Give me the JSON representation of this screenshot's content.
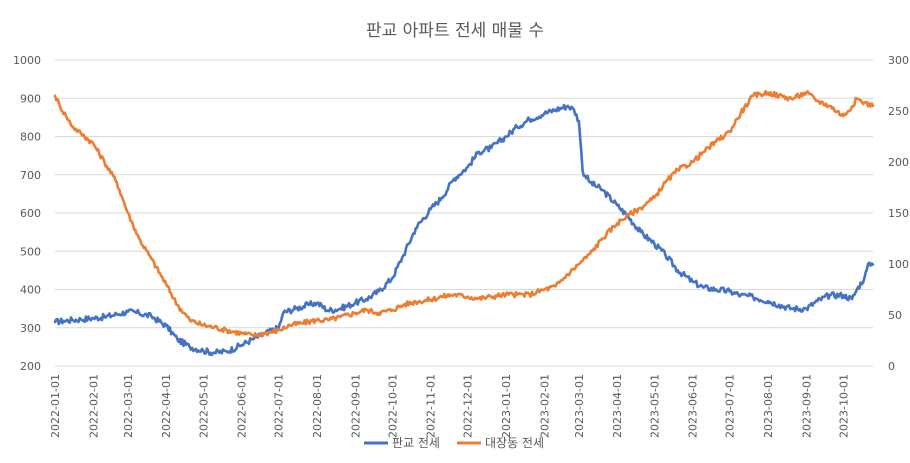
{
  "chart_data": {
    "type": "line",
    "title": "판교 아파트 전세 매물 수",
    "xlabel": "",
    "ylabel": "",
    "x_ticks": [
      "2022-01-01",
      "2022-02-01",
      "2022-03-01",
      "2022-04-01",
      "2022-05-01",
      "2022-06-01",
      "2022-07-01",
      "2022-08-01",
      "2022-09-01",
      "2022-10-01",
      "2022-11-01",
      "2022-12-01",
      "2023-01-01",
      "2023-02-01",
      "2023-03-01",
      "2023-04-01",
      "2023-05-01",
      "2023-06-01",
      "2023-07-01",
      "2023-08-01",
      "2023-09-01",
      "2023-10-01"
    ],
    "x_range": [
      "2022-01-01",
      "2023-10-25"
    ],
    "y_left": {
      "range": [
        200,
        1000
      ],
      "ticks": [
        "200",
        "300",
        "400",
        "500",
        "600",
        "700",
        "800",
        "900",
        "1000"
      ]
    },
    "y_right": {
      "range": [
        0,
        300
      ],
      "ticks": [
        "0",
        "50",
        "100",
        "150",
        "200",
        "250",
        "300"
      ]
    },
    "grid": true,
    "legend_position": "bottom",
    "colors": {
      "series1": "#4472c4",
      "series2": "#ed7d31"
    },
    "series": [
      {
        "name": "판교 전세",
        "axis": "left",
        "points": [
          [
            "2022-01-01",
            315
          ],
          [
            "2022-01-08",
            318
          ],
          [
            "2022-01-15",
            320
          ],
          [
            "2022-01-22",
            322
          ],
          [
            "2022-02-01",
            325
          ],
          [
            "2022-02-10",
            328
          ],
          [
            "2022-02-20",
            335
          ],
          [
            "2022-03-01",
            342
          ],
          [
            "2022-03-10",
            338
          ],
          [
            "2022-03-20",
            330
          ],
          [
            "2022-04-01",
            305
          ],
          [
            "2022-04-10",
            270
          ],
          [
            "2022-04-20",
            250
          ],
          [
            "2022-05-01",
            240
          ],
          [
            "2022-05-10",
            235
          ],
          [
            "2022-05-20",
            238
          ],
          [
            "2022-06-01",
            255
          ],
          [
            "2022-06-10",
            270
          ],
          [
            "2022-06-20",
            285
          ],
          [
            "2022-07-01",
            300
          ],
          [
            "2022-07-05",
            340
          ],
          [
            "2022-07-15",
            350
          ],
          [
            "2022-07-25",
            360
          ],
          [
            "2022-08-01",
            365
          ],
          [
            "2022-08-10",
            345
          ],
          [
            "2022-08-20",
            350
          ],
          [
            "2022-09-01",
            365
          ],
          [
            "2022-09-10",
            375
          ],
          [
            "2022-09-20",
            395
          ],
          [
            "2022-10-01",
            430
          ],
          [
            "2022-10-10",
            490
          ],
          [
            "2022-10-20",
            560
          ],
          [
            "2022-11-01",
            610
          ],
          [
            "2022-11-10",
            640
          ],
          [
            "2022-11-20",
            690
          ],
          [
            "2022-12-01",
            720
          ],
          [
            "2022-12-10",
            760
          ],
          [
            "2022-12-20",
            770
          ],
          [
            "2023-01-01",
            800
          ],
          [
            "2023-01-10",
            825
          ],
          [
            "2023-01-20",
            845
          ],
          [
            "2023-02-01",
            860
          ],
          [
            "2023-02-10",
            870
          ],
          [
            "2023-02-20",
            880
          ],
          [
            "2023-02-25",
            870
          ],
          [
            "2023-03-01",
            840
          ],
          [
            "2023-03-04",
            710
          ],
          [
            "2023-03-10",
            680
          ],
          [
            "2023-03-20",
            660
          ],
          [
            "2023-04-01",
            620
          ],
          [
            "2023-04-10",
            590
          ],
          [
            "2023-04-20",
            550
          ],
          [
            "2023-05-01",
            520
          ],
          [
            "2023-05-10",
            490
          ],
          [
            "2023-05-20",
            450
          ],
          [
            "2023-06-01",
            420
          ],
          [
            "2023-06-10",
            405
          ],
          [
            "2023-06-20",
            400
          ],
          [
            "2023-07-01",
            395
          ],
          [
            "2023-07-10",
            385
          ],
          [
            "2023-07-20",
            380
          ],
          [
            "2023-08-01",
            370
          ],
          [
            "2023-08-10",
            360
          ],
          [
            "2023-08-20",
            350
          ],
          [
            "2023-09-01",
            350
          ],
          [
            "2023-09-10",
            370
          ],
          [
            "2023-09-20",
            385
          ],
          [
            "2023-10-01",
            385
          ],
          [
            "2023-10-08",
            375
          ],
          [
            "2023-10-12",
            400
          ],
          [
            "2023-10-18",
            430
          ],
          [
            "2023-10-22",
            470
          ],
          [
            "2023-10-25",
            465
          ]
        ]
      },
      {
        "name": "대장동 전세",
        "axis": "right",
        "points": [
          [
            "2022-01-01",
            265
          ],
          [
            "2022-01-05",
            255
          ],
          [
            "2022-01-10",
            245
          ],
          [
            "2022-01-15",
            235
          ],
          [
            "2022-01-22",
            228
          ],
          [
            "2022-02-01",
            218
          ],
          [
            "2022-02-10",
            200
          ],
          [
            "2022-02-20",
            180
          ],
          [
            "2022-03-01",
            150
          ],
          [
            "2022-03-10",
            125
          ],
          [
            "2022-03-20",
            105
          ],
          [
            "2022-04-01",
            80
          ],
          [
            "2022-04-10",
            60
          ],
          [
            "2022-04-20",
            45
          ],
          [
            "2022-05-01",
            40
          ],
          [
            "2022-05-10",
            38
          ],
          [
            "2022-05-20",
            35
          ],
          [
            "2022-06-01",
            32
          ],
          [
            "2022-06-10",
            30
          ],
          [
            "2022-06-20",
            32
          ],
          [
            "2022-07-01",
            35
          ],
          [
            "2022-07-10",
            40
          ],
          [
            "2022-07-20",
            42
          ],
          [
            "2022-08-01",
            45
          ],
          [
            "2022-08-10",
            45
          ],
          [
            "2022-08-20",
            48
          ],
          [
            "2022-09-01",
            52
          ],
          [
            "2022-09-10",
            55
          ],
          [
            "2022-09-20",
            52
          ],
          [
            "2022-10-01",
            55
          ],
          [
            "2022-10-10",
            60
          ],
          [
            "2022-10-20",
            63
          ],
          [
            "2022-11-01",
            65
          ],
          [
            "2022-11-10",
            68
          ],
          [
            "2022-11-20",
            70
          ],
          [
            "2022-12-01",
            68
          ],
          [
            "2022-12-10",
            66
          ],
          [
            "2022-12-20",
            68
          ],
          [
            "2023-01-01",
            70
          ],
          [
            "2023-01-10",
            70
          ],
          [
            "2023-01-20",
            70
          ],
          [
            "2023-02-01",
            75
          ],
          [
            "2023-02-10",
            78
          ],
          [
            "2023-02-20",
            90
          ],
          [
            "2023-03-01",
            100
          ],
          [
            "2023-03-10",
            110
          ],
          [
            "2023-03-20",
            125
          ],
          [
            "2023-04-01",
            140
          ],
          [
            "2023-04-10",
            148
          ],
          [
            "2023-04-20",
            155
          ],
          [
            "2023-05-01",
            165
          ],
          [
            "2023-05-10",
            180
          ],
          [
            "2023-05-20",
            192
          ],
          [
            "2023-06-01",
            200
          ],
          [
            "2023-06-10",
            210
          ],
          [
            "2023-06-20",
            220
          ],
          [
            "2023-07-01",
            230
          ],
          [
            "2023-07-10",
            248
          ],
          [
            "2023-07-20",
            265
          ],
          [
            "2023-08-01",
            268
          ],
          [
            "2023-08-10",
            265
          ],
          [
            "2023-08-20",
            262
          ],
          [
            "2023-09-01",
            268
          ],
          [
            "2023-09-10",
            260
          ],
          [
            "2023-09-20",
            255
          ],
          [
            "2023-10-01",
            245
          ],
          [
            "2023-10-05",
            250
          ],
          [
            "2023-10-12",
            262
          ],
          [
            "2023-10-18",
            258
          ],
          [
            "2023-10-25",
            255
          ]
        ]
      }
    ]
  }
}
